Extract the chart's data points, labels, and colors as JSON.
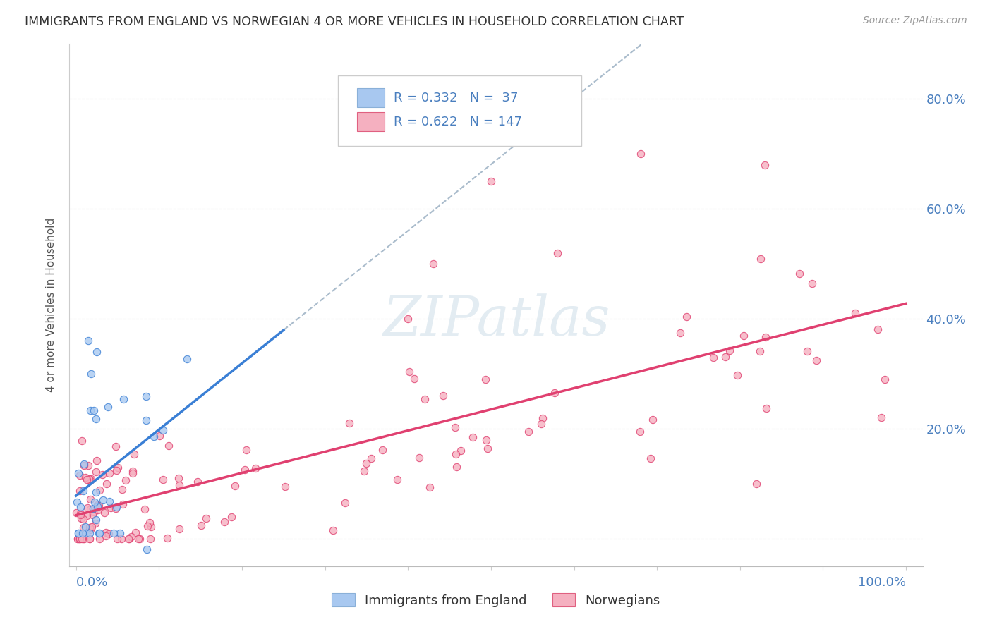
{
  "title": "IMMIGRANTS FROM ENGLAND VS NORWEGIAN 4 OR MORE VEHICLES IN HOUSEHOLD CORRELATION CHART",
  "source": "Source: ZipAtlas.com",
  "ylabel": "4 or more Vehicles in Household",
  "legend_label1": "Immigrants from England",
  "legend_label2": "Norwegians",
  "R1": 0.332,
  "N1": 37,
  "R2": 0.622,
  "N2": 147,
  "color_england": "#a8c8f0",
  "color_norway": "#f5b0c0",
  "trendline_england": "#3a7fd5",
  "trendline_norway": "#e04070",
  "trendline_dashed": "#aabccc",
  "watermark_color": "#ccdde8",
  "background_color": "#ffffff",
  "xlim": [
    0,
    1.0
  ],
  "ylim": [
    -0.02,
    0.9
  ],
  "ytick_values": [
    0.0,
    0.2,
    0.4,
    0.6,
    0.8
  ],
  "ytick_labels": [
    "",
    "20.0%",
    "40.0%",
    "60.0%",
    "80.0%"
  ]
}
